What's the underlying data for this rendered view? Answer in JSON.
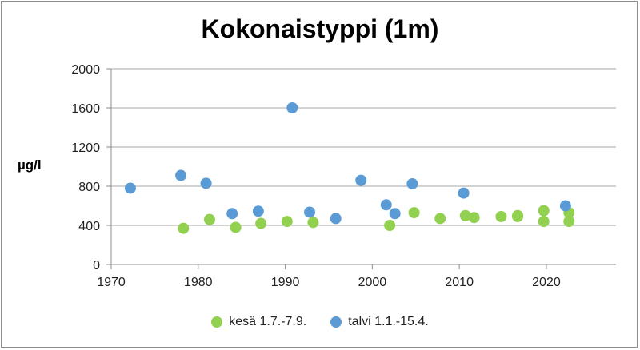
{
  "chart_data": {
    "type": "scatter",
    "title": "Kokonaistyppi (1m)",
    "ylabel": "µg/l",
    "xlabel": "",
    "xlim": [
      1970,
      2028
    ],
    "ylim": [
      0,
      2000
    ],
    "xticks": [
      1970,
      1980,
      1990,
      2000,
      2010,
      2020
    ],
    "yticks": [
      0,
      400,
      800,
      1200,
      1600,
      2000
    ],
    "grid": "horizontal",
    "legend_position": "bottom",
    "series": [
      {
        "name": "kesä 1.7.-7.9.",
        "color": "#92d050",
        "points": [
          [
            1978.3,
            370
          ],
          [
            1981.3,
            460
          ],
          [
            1984.3,
            380
          ],
          [
            1987.2,
            420
          ],
          [
            1990.2,
            440
          ],
          [
            1993.2,
            430
          ],
          [
            2002.0,
            400
          ],
          [
            2004.8,
            530
          ],
          [
            2007.8,
            470
          ],
          [
            2010.7,
            500
          ],
          [
            2011.7,
            480
          ],
          [
            2014.8,
            490
          ],
          [
            2016.7,
            500
          ],
          [
            2016.7,
            490
          ],
          [
            2019.7,
            550
          ],
          [
            2019.7,
            440
          ],
          [
            2022.6,
            530
          ],
          [
            2022.6,
            440
          ]
        ]
      },
      {
        "name": "talvi 1.1.-15.4.",
        "color": "#5b9bd5",
        "points": [
          [
            1972.2,
            780
          ],
          [
            1978.0,
            910
          ],
          [
            1980.9,
            830
          ],
          [
            1983.9,
            520
          ],
          [
            1986.9,
            545
          ],
          [
            1990.8,
            1600
          ],
          [
            1992.8,
            535
          ],
          [
            1995.8,
            470
          ],
          [
            1998.7,
            860
          ],
          [
            2001.6,
            610
          ],
          [
            2002.6,
            520
          ],
          [
            2004.6,
            825
          ],
          [
            2010.5,
            730
          ],
          [
            2022.2,
            600
          ]
        ]
      }
    ]
  }
}
